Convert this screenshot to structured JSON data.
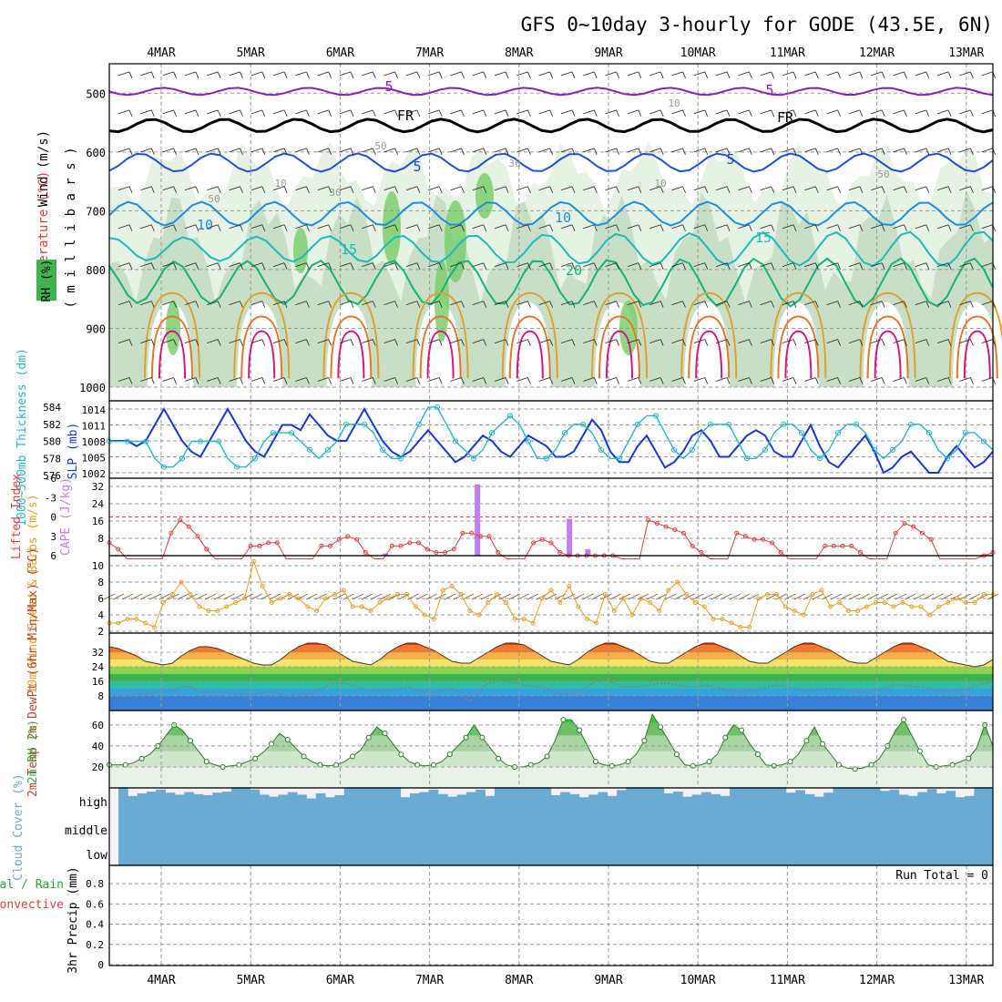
{
  "title": "GFS 0~10day 3-hourly for GODE (43.5E, 6N)",
  "dates": [
    "4MAR",
    "5MAR",
    "6MAR",
    "7MAR",
    "8MAR",
    "9MAR",
    "10MAR",
    "11MAR",
    "12MAR",
    "13MAR"
  ],
  "colors": {
    "rh_light": "#e6f2e3",
    "rh_mid": "#c5dcc3",
    "rh_dark": "#9fb7a2",
    "rh_green": "#7ccf6f",
    "temp_purple": "#8a1fb5",
    "temp_black": "#000000",
    "temp_blue": "#1f4fd6",
    "temp_skyblue": "#1e8ede",
    "temp_cyan": "#1cbabd",
    "temp_teal": "#15b27a",
    "temp_gold": "#e0a12a",
    "temp_orange": "#e07828",
    "temp_magenta": "#d4147f",
    "slp": "#1838d0",
    "thickness": "#2ab6c9",
    "lifted": "#e04040",
    "cape": "#c07ef0",
    "wind_speed": "#e6a027",
    "barbs": "#7a5a3a",
    "dewpt": "#808080",
    "rh2m": "#3caa3c",
    "cloud": "#6aaad3",
    "grid": "#999999"
  },
  "chart_data": [
    {
      "type": "heatmap",
      "panel": "upper-air",
      "ylabel_parts": [
        "RH (%)",
        "Temperature (°C)",
        "Wind (m/s)"
      ],
      "yunit": "( m i l l i b a r s )",
      "yticks": [
        500,
        600,
        700,
        800,
        900,
        1000
      ],
      "ylim": [
        1000,
        450
      ],
      "contour_labels": [
        "5",
        "5",
        "FR",
        "FR",
        "5",
        "5",
        "10",
        "10",
        "15",
        "15",
        "20",
        "10",
        "10",
        "30",
        "50",
        "50",
        "10",
        "50",
        "30"
      ],
      "level_lines": [
        {
          "name": "-5",
          "mb": 497
        },
        {
          "name": "FR",
          "mb": 555
        },
        {
          "name": "5",
          "mb": 618
        },
        {
          "name": "10",
          "mb": 705
        },
        {
          "name": "15",
          "mb": 765
        },
        {
          "name": "20",
          "mb": 822
        }
      ]
    },
    {
      "type": "line",
      "panel": "slp-thickness",
      "ylabel_left": "1000~500mb Thickness (dm)",
      "ylabel_right": "SLP (mb)",
      "yticks_thickness": [
        576,
        578,
        580,
        582,
        584
      ],
      "yticks_slp": [
        1002,
        1005,
        1008,
        1011,
        1014
      ],
      "series": [
        {
          "name": "SLP (mb)",
          "values": [
            1008,
            1008,
            1008,
            1007,
            1008,
            1011,
            1014,
            1011,
            1008,
            1006,
            1005,
            1008,
            1011,
            1014,
            1011,
            1008,
            1006,
            1005,
            1008,
            1011,
            1011,
            1010,
            1013,
            1011,
            1009,
            1008,
            1008,
            1011,
            1014,
            1011,
            1008,
            1006,
            1005,
            1006,
            1008,
            1010,
            1008,
            1006,
            1004,
            1005,
            1007,
            1009,
            1008,
            1006,
            1005,
            1007,
            1009,
            1008,
            1007,
            1005,
            1005,
            1006,
            1009,
            1012,
            1010,
            1006,
            1004,
            1004,
            1007,
            1009,
            1006,
            1003,
            1004,
            1006,
            1009,
            1010,
            1008,
            1005,
            1005,
            1007,
            1009,
            1010,
            1009,
            1006,
            1005,
            1005,
            1008,
            1011,
            1007,
            1004,
            1003,
            1005,
            1007,
            1009,
            1006,
            1002,
            1003,
            1005,
            1006,
            1004,
            1002,
            1002,
            1005,
            1007,
            1005,
            1003,
            1004,
            1006
          ]
        },
        {
          "name": "Thickness (dm)",
          "values": [
            580,
            580,
            580,
            580,
            580,
            578,
            577,
            577,
            578,
            580,
            580,
            580,
            580,
            578,
            577,
            577,
            578,
            580,
            581,
            581,
            581,
            580,
            579,
            578,
            579,
            580,
            582,
            582,
            582,
            581,
            579,
            578,
            578,
            580,
            582,
            584,
            584,
            582,
            580,
            579,
            578,
            579,
            581,
            582,
            583,
            582,
            580,
            578,
            578,
            579,
            581,
            582,
            582,
            581,
            579,
            578,
            578,
            580,
            582,
            583,
            583,
            581,
            579,
            578,
            579,
            581,
            582,
            582,
            582,
            580,
            578,
            578,
            579,
            581,
            582,
            582,
            581,
            579,
            578,
            579,
            581,
            582,
            582,
            581,
            579,
            578,
            579,
            580,
            582,
            582,
            581,
            579,
            578,
            579,
            581,
            581,
            580,
            579
          ]
        }
      ]
    },
    {
      "type": "bar",
      "panel": "li-cape",
      "ylabel_left": "Lifted Index",
      "ylabel_right": "CAPE (J/kg)",
      "yticks_li": [
        "-6",
        "-3",
        "0",
        "3",
        "6"
      ],
      "yticks_cape": [
        8,
        16,
        24,
        32
      ],
      "series": [
        {
          "name": "Lifted Index",
          "values": [
            4.0,
            5.0,
            6.5,
            6.5,
            6.5,
            6.5,
            6.5,
            2.5,
            0.5,
            1.5,
            3.0,
            5.0,
            6.5,
            6.5,
            6.5,
            6.5,
            4.5,
            4.5,
            4.0,
            4.0,
            6.5,
            6.5,
            6.5,
            6.5,
            4.5,
            4.5,
            3.5,
            3.0,
            3.5,
            5.5,
            6.5,
            6.5,
            4.5,
            4.5,
            4.0,
            4.0,
            5.0,
            5.5,
            5.5,
            5.0,
            2.5,
            2.5,
            3.0,
            3.0,
            5.5,
            6.5,
            6.5,
            6.5,
            4.0,
            3.5,
            4.0,
            5.5,
            6.0,
            6.0,
            6.0,
            6.0,
            6.0,
            6.0,
            6.5,
            6.5,
            6.5,
            0.5,
            1.0,
            1.5,
            2.0,
            2.5,
            4.5,
            5.5,
            6.5,
            6.5,
            6.5,
            2.5,
            3.0,
            3.5,
            3.5,
            4.0,
            5.5,
            6.5,
            6.5,
            6.5,
            6.5,
            4.5,
            4.5,
            4.5,
            4.5,
            5.5,
            6.5,
            6.5,
            6.5,
            2.5,
            1.0,
            1.5,
            2.5,
            3.5,
            6.5,
            6.5,
            6.5,
            6.5,
            6.5,
            6.0,
            5.5
          ]
        },
        {
          "name": "CAPE (J/kg)",
          "bars": [
            {
              "index": 30,
              "value": 1
            },
            {
              "index": 40,
              "value": 33
            },
            {
              "index": 50,
              "value": 17
            },
            {
              "index": 52,
              "value": 3
            }
          ]
        }
      ]
    },
    {
      "type": "line",
      "panel": "wind10m",
      "ylabel": "10m Wind Speed & Barbs (m/s)",
      "yticks": [
        2,
        4,
        6,
        8,
        10
      ],
      "series": [
        {
          "name": "Wind Speed (m/s)",
          "values": [
            3.0,
            3.0,
            3.5,
            3.5,
            3.0,
            2.5,
            5.5,
            6.5,
            8.0,
            6.5,
            5.0,
            4.5,
            4.5,
            5.0,
            5.5,
            6.0,
            10.5,
            7.5,
            5.5,
            6.0,
            6.5,
            6.0,
            5.0,
            4.5,
            6.0,
            6.5,
            7.0,
            5.0,
            5.0,
            4.5,
            5.5,
            6.0,
            6.5,
            6.5,
            5.0,
            4.0,
            3.5,
            7.0,
            7.5,
            6.5,
            4.5,
            4.0,
            5.5,
            6.5,
            5.5,
            3.5,
            3.5,
            3.0,
            6.0,
            7.0,
            5.5,
            7.5,
            5.0,
            3.5,
            3.0,
            6.5,
            4.5,
            6.0,
            4.0,
            6.0,
            5.5,
            4.5,
            7.0,
            8.0,
            6.5,
            5.5,
            5.0,
            3.5,
            3.5,
            3.0,
            2.5,
            2.5,
            6.0,
            6.5,
            6.5,
            5.0,
            4.5,
            4.0,
            6.5,
            7.0,
            5.0,
            5.5,
            4.5,
            4.5,
            5.0,
            5.5,
            5.5,
            5.0,
            5.5,
            5.0,
            5.0,
            4.0,
            5.0,
            5.5,
            6.0,
            5.5,
            5.5,
            6.5,
            6.5
          ]
        }
      ]
    },
    {
      "type": "area",
      "panel": "temp2m",
      "ylabel": "2m Temp 2m DewPt (6hr Min/Max) (°C)",
      "yticks": [
        8,
        16,
        24,
        32
      ],
      "series": [
        {
          "name": "2m Temp (°C)",
          "values": [
            35,
            34,
            32,
            30,
            27,
            26,
            25,
            26,
            30,
            33,
            35,
            35,
            34,
            32,
            30,
            28,
            26,
            25,
            25,
            28,
            32,
            35,
            37,
            37,
            36,
            33,
            30,
            27,
            26,
            25,
            28,
            32,
            35,
            37,
            37,
            35,
            33,
            30,
            27,
            26,
            26,
            29,
            32,
            35,
            37,
            37,
            36,
            33,
            30,
            27,
            26,
            25,
            28,
            32,
            35,
            37,
            37,
            35,
            33,
            30,
            27,
            26,
            26,
            29,
            32,
            35,
            37,
            37,
            35,
            33,
            30,
            27,
            26,
            26,
            29,
            32,
            35,
            37,
            37,
            35,
            33,
            30,
            27,
            26,
            26,
            29,
            32,
            35,
            37,
            37,
            35,
            33,
            30,
            27,
            26,
            25,
            24,
            25,
            28
          ]
        },
        {
          "name": "2m DewPt (°C)",
          "values": [
            9,
            8,
            8,
            9,
            9,
            10,
            10,
            11,
            13,
            13,
            10,
            10,
            10,
            10,
            9,
            9,
            9,
            10,
            10,
            9,
            8,
            9,
            9,
            11,
            13,
            15,
            15,
            14,
            12,
            11,
            11,
            11,
            12,
            13,
            11,
            10,
            10,
            11,
            12,
            10,
            5,
            11,
            15,
            16,
            16,
            15,
            14,
            13,
            13,
            11,
            9,
            9,
            10,
            13,
            16,
            17,
            15,
            13,
            13,
            13,
            14,
            15,
            15,
            14,
            13,
            13,
            14,
            13,
            12,
            11,
            10,
            11,
            12,
            13,
            14,
            13,
            12,
            11,
            11,
            12,
            12,
            12,
            11,
            10,
            10,
            11,
            12,
            14,
            14,
            13,
            13,
            12,
            11,
            10,
            11,
            12,
            13,
            15,
            16
          ]
        }
      ]
    },
    {
      "type": "area",
      "panel": "rh2m",
      "ylabel": "2m RH (%)",
      "yticks": [
        20,
        40,
        60
      ],
      "series": [
        {
          "name": "2m RH (%)",
          "values": [
            22,
            22,
            22,
            24,
            28,
            32,
            40,
            50,
            60,
            55,
            45,
            35,
            25,
            22,
            20,
            21,
            22,
            25,
            28,
            34,
            42,
            52,
            46,
            38,
            30,
            25,
            22,
            21,
            22,
            25,
            30,
            36,
            48,
            58,
            52,
            42,
            32,
            25,
            22,
            21,
            22,
            25,
            32,
            40,
            48,
            60,
            48,
            38,
            28,
            22,
            20,
            20,
            22,
            24,
            30,
            45,
            65,
            65,
            55,
            40,
            25,
            22,
            21,
            22,
            25,
            32,
            45,
            70,
            58,
            45,
            32,
            22,
            21,
            22,
            25,
            32,
            48,
            60,
            55,
            42,
            32,
            22,
            21,
            22,
            25,
            32,
            45,
            58,
            42,
            32,
            22,
            19,
            18,
            19,
            22,
            28,
            40,
            55,
            65,
            50,
            35,
            22,
            20,
            21,
            22,
            25,
            28,
            38,
            60,
            40
          ]
        }
      ]
    },
    {
      "type": "bar",
      "panel": "cloud",
      "ylabel": "Cloud Cover (%)",
      "rows": [
        "high",
        "middle",
        "low"
      ],
      "series": [
        {
          "name": "high",
          "values": [
            100,
            65,
            75,
            82,
            90,
            78,
            70,
            80,
            72,
            68,
            78,
            82,
            100,
            100,
            90,
            70,
            62,
            70,
            80,
            70,
            55,
            75,
            60,
            68,
            100,
            100,
            100,
            100,
            100,
            100,
            60,
            75,
            80,
            90,
            72,
            62,
            70,
            80,
            90,
            65,
            100,
            100,
            100,
            100,
            100,
            100,
            68,
            80,
            72,
            60,
            70,
            80,
            65,
            88,
            100,
            100,
            100,
            100,
            75,
            82,
            62,
            70,
            80,
            72,
            65,
            100,
            100,
            100,
            100,
            100,
            100,
            78,
            88,
            72,
            62,
            78,
            100,
            100,
            100,
            100,
            100,
            85,
            90,
            70,
            65,
            80,
            92,
            75,
            85,
            60,
            65,
            100,
            100
          ]
        },
        {
          "name": "middle",
          "values": [
            100
          ]
        },
        {
          "name": "low",
          "values": [
            100
          ]
        }
      ]
    },
    {
      "type": "bar",
      "panel": "precip",
      "ylabel_parts": [
        "Total / Rain",
        "Convective"
      ],
      "yaxis": "3hr Precip (mm)",
      "yticks": [
        "0",
        "0.2",
        "0.4",
        "0.6",
        "0.8"
      ],
      "run_total_text": "Run Total = 0",
      "series": [
        {
          "name": "Total / Rain (mm)",
          "values": []
        },
        {
          "name": "Convective (mm)",
          "values": []
        }
      ]
    }
  ]
}
